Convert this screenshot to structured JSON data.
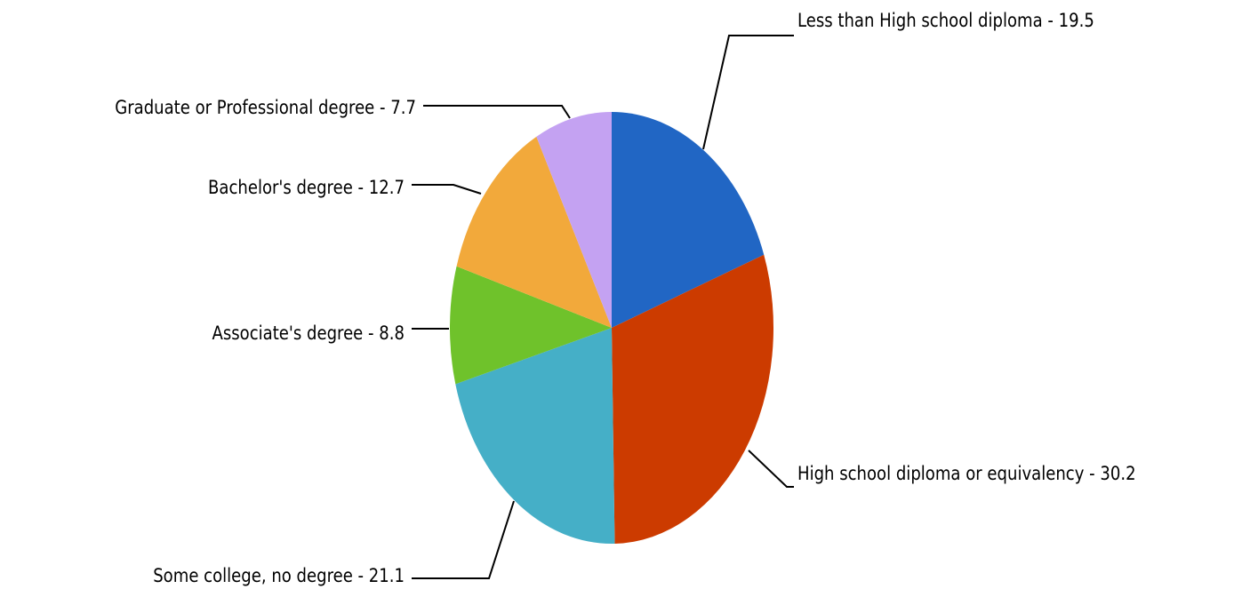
{
  "chart_data": {
    "type": "pie",
    "title": "",
    "start_angle_deg": 90,
    "direction": "clockwise",
    "label_format": "{label} - {value}",
    "slices": [
      {
        "label": "Less than High school diploma",
        "value": 19.5,
        "color": "#2166c4"
      },
      {
        "label": "High school diploma or equivalency",
        "value": 30.2,
        "color": "#cc3b00"
      },
      {
        "label": "Some college, no degree",
        "value": 21.1,
        "color": "#45afc7"
      },
      {
        "label": "Associate's degree",
        "value": 8.8,
        "color": "#6fc22b"
      },
      {
        "label": "Bachelor's degree",
        "value": 12.7,
        "color": "#f2a93b"
      },
      {
        "label": "Graduate or Professional degree",
        "value": 7.7,
        "color": "#c4a2f2"
      }
    ]
  }
}
